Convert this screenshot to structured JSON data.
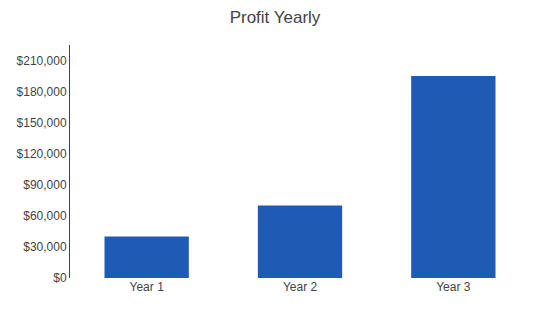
{
  "chart_data": {
    "type": "bar",
    "title": "Profit Yearly",
    "categories": [
      "Year 1",
      "Year 2",
      "Year 3"
    ],
    "values": [
      40000,
      70000,
      195000
    ],
    "color": "#1F5BB5",
    "ylim": [
      0,
      225000
    ],
    "yticks": [
      {
        "value": 0,
        "label": "$0"
      },
      {
        "value": 30000,
        "label": "$30,000"
      },
      {
        "value": 60000,
        "label": "$60,000"
      },
      {
        "value": 90000,
        "label": "$90,000"
      },
      {
        "value": 120000,
        "label": "$120,000"
      },
      {
        "value": 150000,
        "label": "$150,000"
      },
      {
        "value": 180000,
        "label": "$180,000"
      },
      {
        "value": 210000,
        "label": "$210,000"
      }
    ],
    "grid": false
  }
}
